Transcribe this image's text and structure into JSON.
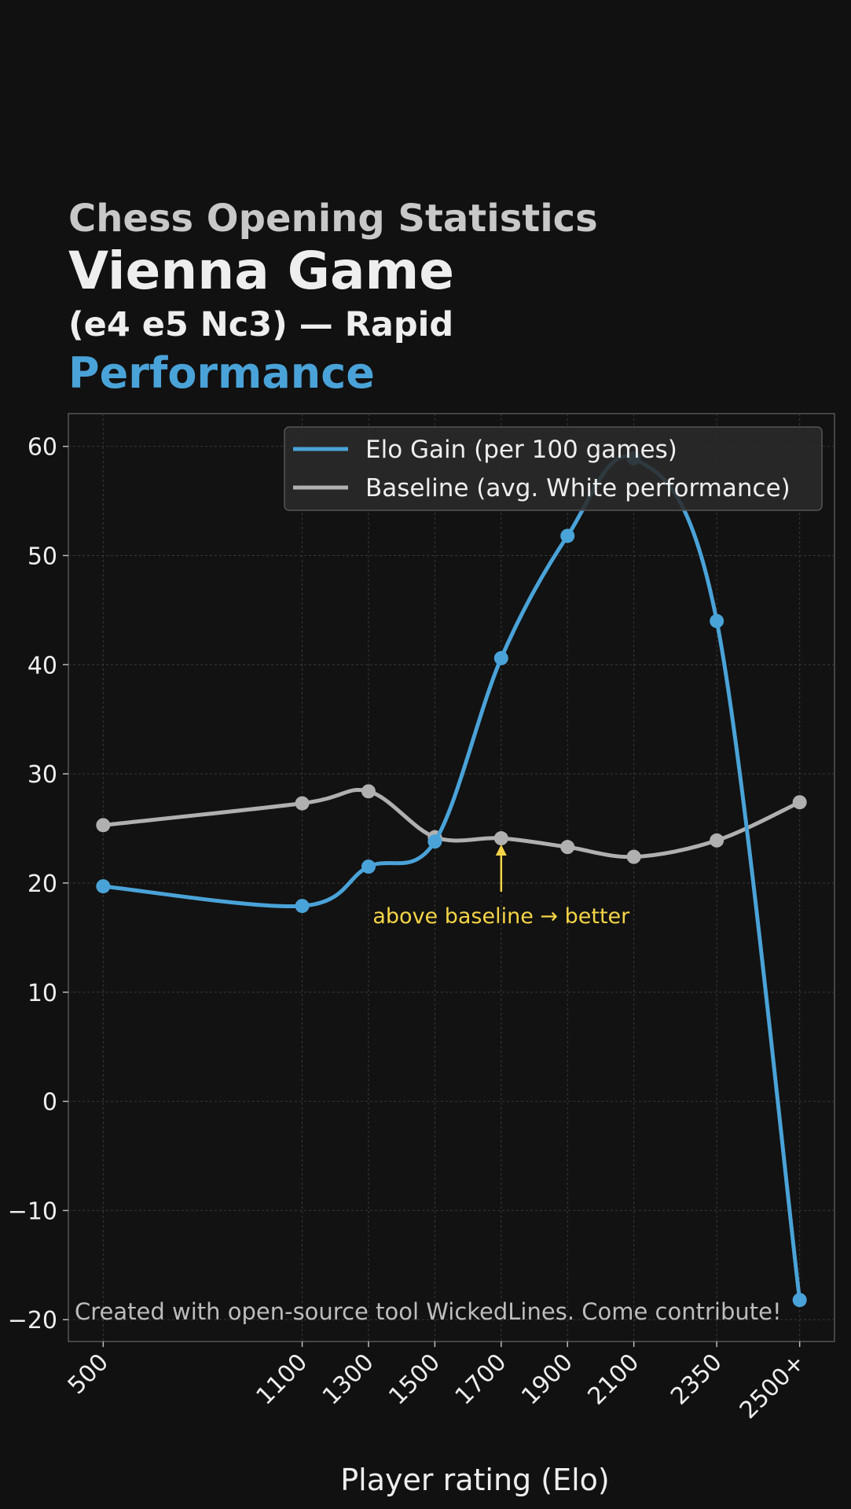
{
  "header": {
    "kicker": "Chess Opening Statistics",
    "title": "Vienna Game",
    "subtitle": "(e4 e5 Nc3) — Rapid",
    "accent": "Performance"
  },
  "colors": {
    "background": "#111111",
    "elo_gain": "#4aa3d8",
    "baseline": "#b0b0b0",
    "annotation": "#f5d547",
    "text": "#eeeeee"
  },
  "chart_data": {
    "type": "line",
    "xlabel": "Player rating (Elo)",
    "ylabel": "",
    "x": [
      500,
      1100,
      1300,
      1500,
      1700,
      1900,
      2100,
      2350,
      2600
    ],
    "categories": [
      "500",
      "1100",
      "1300",
      "1500",
      "1700",
      "1900",
      "2100",
      "2350",
      "2500+"
    ],
    "xlim": [
      395,
      2705
    ],
    "ylim": [
      -22,
      63
    ],
    "yticks": [
      -20,
      -10,
      0,
      10,
      20,
      30,
      40,
      50,
      60
    ],
    "ytick_labels": [
      "−20",
      "−10",
      "0",
      "10",
      "20",
      "30",
      "40",
      "50",
      "60"
    ],
    "grid": true,
    "legend_position": "top-right",
    "series": [
      {
        "name": "Elo Gain (per 100 games)",
        "values": [
          19.7,
          17.9,
          21.5,
          23.8,
          40.6,
          51.8,
          58.9,
          44.0,
          -18.2
        ]
      },
      {
        "name": "Baseline (avg. White performance)",
        "values": [
          25.3,
          27.3,
          28.4,
          24.2,
          24.1,
          23.3,
          22.4,
          23.9,
          27.4
        ]
      }
    ],
    "annotation": {
      "text": "above baseline → better",
      "x": 1700,
      "y": 24.1
    },
    "footer": "Created with open-source tool WickedLines. Come contribute!"
  }
}
